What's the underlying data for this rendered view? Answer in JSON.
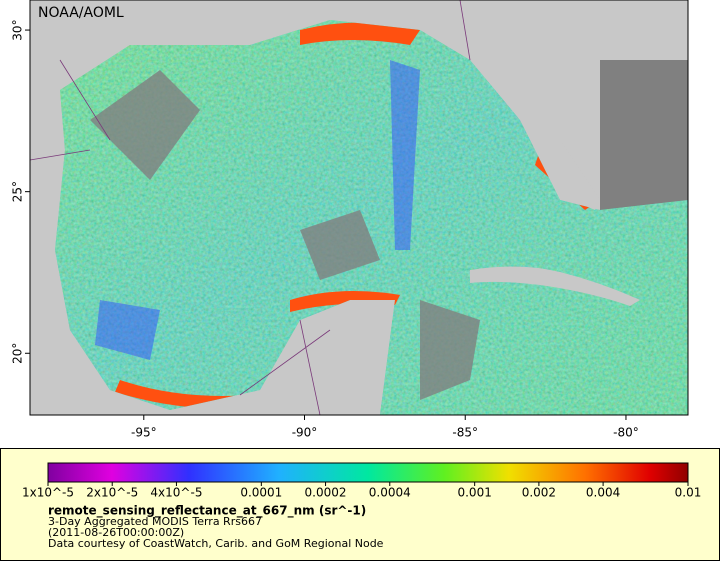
{
  "map": {
    "source": "NOAA/AOML",
    "xlim": [
      -98.54,
      -78.07
    ],
    "ylim": [
      18.09,
      30.93
    ],
    "xticks": [
      {
        "value": -95,
        "label": "-95°"
      },
      {
        "value": -90,
        "label": "-90°"
      },
      {
        "value": -85,
        "label": "-85°"
      },
      {
        "value": -80,
        "label": "-80°"
      }
    ],
    "yticks": [
      {
        "value": 20,
        "label": "20°"
      },
      {
        "value": 25,
        "label": "25°"
      },
      {
        "value": 30,
        "label": "30°"
      }
    ]
  },
  "colorbar": {
    "scale": "log",
    "lim": [
      1e-05,
      0.01
    ],
    "ticks": [
      {
        "value": 1e-05,
        "label": "1x10^-5"
      },
      {
        "value": 2e-05,
        "label": "2x10^-5"
      },
      {
        "value": 4e-05,
        "label": "4x10^-5"
      },
      0.0001,
      0.0002,
      0.0004,
      0.001,
      0.002,
      0.004,
      0.01
    ]
  },
  "legend": {
    "variable": "remote_sensing_reflectance_at_667_nm (sr^-1)",
    "lines": [
      "3-Day Aggregated MODIS Terra Rrs667",
      "(2011-08-26T00:00:00Z)",
      "Data courtesy of CoastWatch, Carib. and GoM Regional Node"
    ]
  }
}
